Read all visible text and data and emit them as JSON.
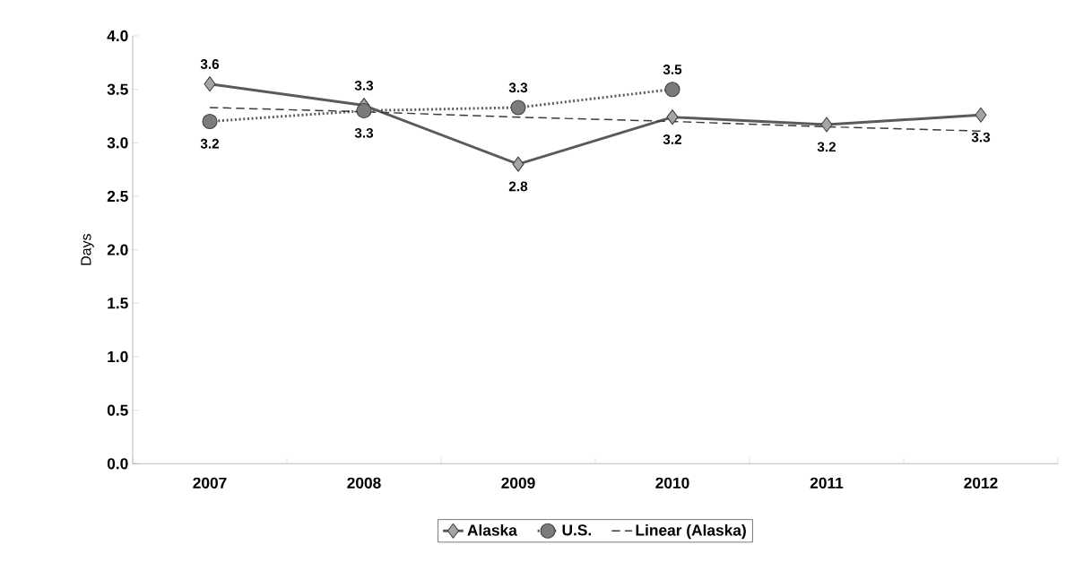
{
  "chart_data": {
    "type": "line",
    "ylabel": "Days",
    "categories": [
      "2007",
      "2008",
      "2009",
      "2010",
      "2011",
      "2012"
    ],
    "series": [
      {
        "name": "Alaska",
        "color": "#5a5a5a",
        "marker": "diamond",
        "line_style": "solid",
        "values": [
          3.55,
          3.35,
          2.8,
          3.24,
          3.17,
          3.26
        ],
        "value_labels": [
          "3.6",
          "3.3",
          "2.8",
          "3.2",
          "3.2",
          "3.3"
        ]
      },
      {
        "name": "U.S.",
        "color": "#5a5a5a",
        "marker": "circle",
        "line_style": "dotted",
        "values": [
          3.2,
          3.3,
          3.33,
          3.5,
          null,
          null
        ],
        "value_labels": [
          "3.2",
          "3.3",
          "3.3",
          "3.5",
          null,
          null
        ]
      },
      {
        "name": "Linear (Alaska)",
        "color": "#3a3a3a",
        "marker": "none",
        "line_style": "dashed",
        "values": [
          3.33,
          3.29,
          3.24,
          3.2,
          3.15,
          3.11
        ]
      }
    ],
    "ylim": [
      0,
      4
    ],
    "yticks": [
      {
        "value": 0,
        "label": "0.0"
      },
      {
        "value": 0.5,
        "label": "0.5"
      },
      {
        "value": 1,
        "label": "1.0"
      },
      {
        "value": 1.5,
        "label": "1.5"
      },
      {
        "value": 2,
        "label": "2.0"
      },
      {
        "value": 2.5,
        "label": "2.5"
      },
      {
        "value": 3,
        "label": "3.0"
      },
      {
        "value": 3.5,
        "label": "3.5"
      },
      {
        "value": 4,
        "label": "4.0"
      }
    ],
    "legend": "bottom",
    "grid": false
  }
}
